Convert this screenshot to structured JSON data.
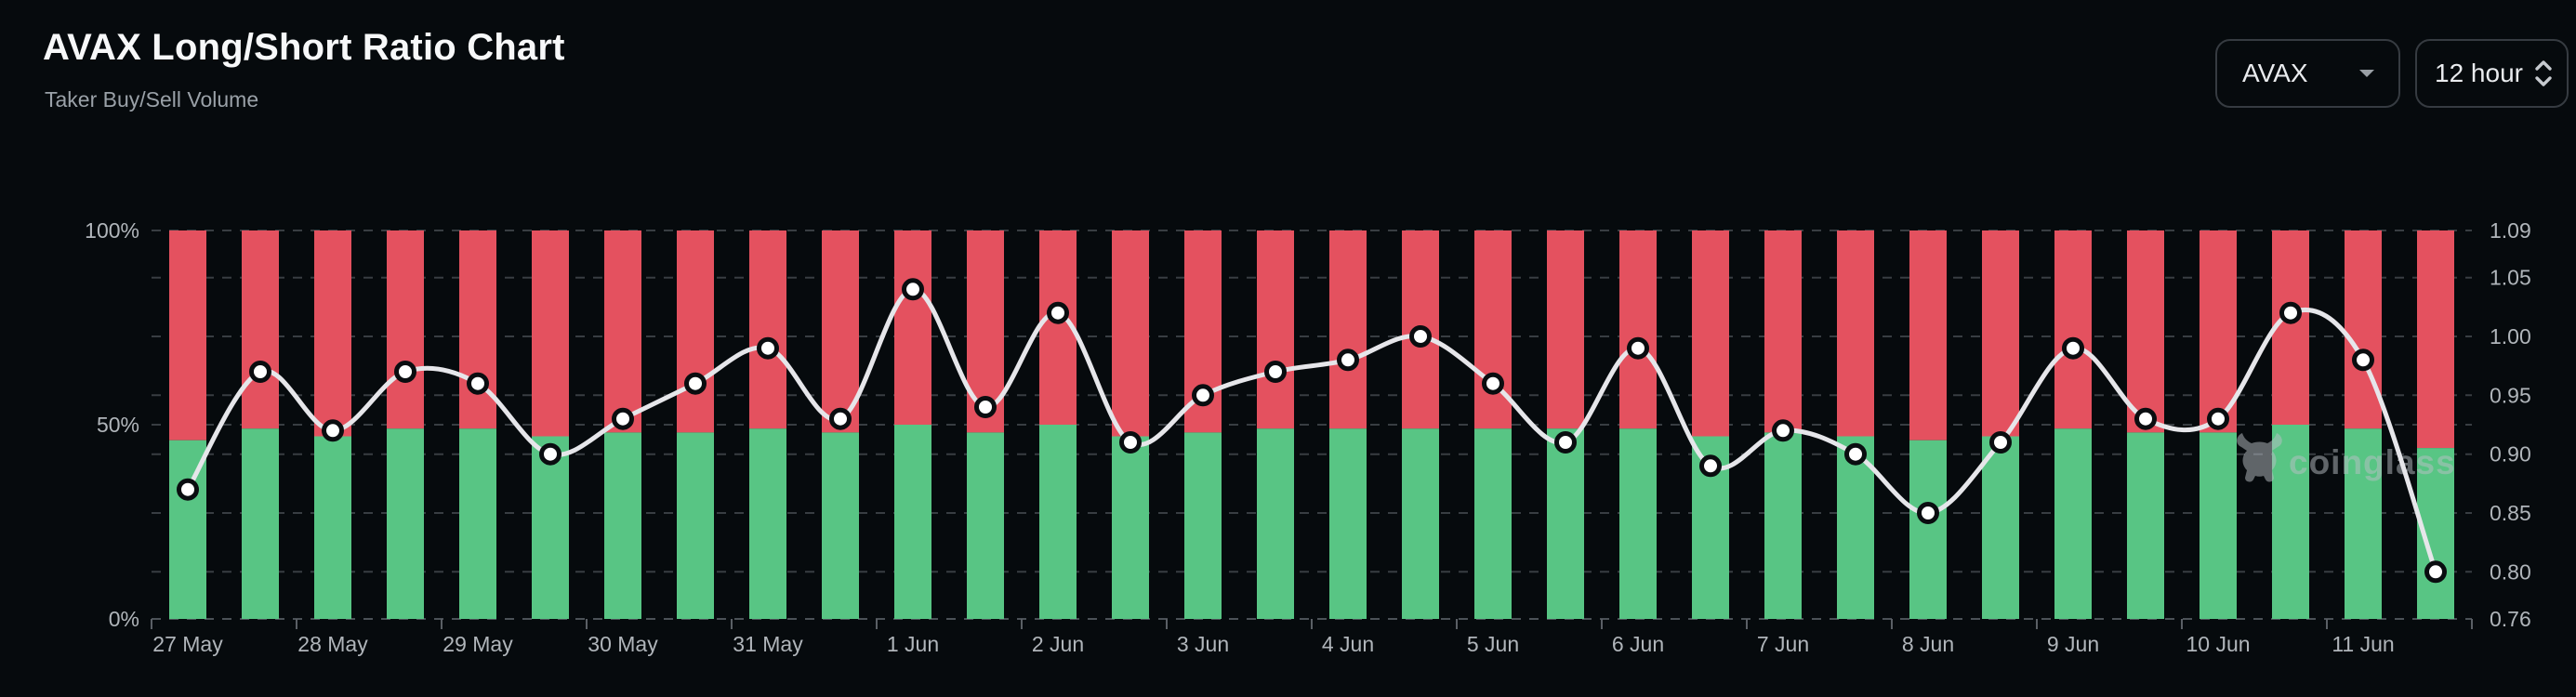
{
  "header": {
    "title": "AVAX Long/Short Ratio Chart",
    "subtitle": "Taker Buy/Sell Volume"
  },
  "controls": {
    "symbol": "AVAX",
    "symbol_icon": "chevron-down-icon",
    "interval": "12 hour",
    "interval_icon": "chevron-up-down-icon"
  },
  "watermark": {
    "brand": "coinglass",
    "icon": "coinglass-bull-icon"
  },
  "colors": {
    "background": "#060a0d",
    "long_green": "#58c584",
    "short_red": "#e4515f",
    "ratio_line": "#e6e6ea",
    "marker_fill": "#ffffff",
    "marker_stroke": "#0a0d10",
    "grid": "#383d42",
    "baseline": "#4b5157",
    "tick": "#5a5f65",
    "axis_text": "#b0b5ba",
    "watermark_gray": "rgba(185,192,198,0.5)"
  },
  "chart_data": {
    "type": "bar",
    "subtype": "stacked-percent-bars-with-smooth-line-overlay",
    "title": "AVAX Long/Short Ratio Chart",
    "subtitle": "Taker Buy/Sell Volume",
    "interval": "12 hour",
    "legend_position": "none",
    "grid": "horizontal-dashed",
    "categories": [
      "27 May",
      "28 May",
      "29 May",
      "30 May",
      "31 May",
      "1 Jun",
      "2 Jun",
      "3 Jun",
      "4 Jun",
      "5 Jun",
      "6 Jun",
      "7 Jun",
      "8 Jun",
      "9 Jun",
      "10 Jun",
      "11 Jun"
    ],
    "bars_per_category": 2,
    "left_axis": {
      "tick_labels": [
        "100%",
        "50%",
        "0%"
      ],
      "tick_values": [
        100,
        50,
        0
      ],
      "range": [
        0,
        100
      ]
    },
    "right_axis": {
      "tick_labels": [
        "1.09",
        "1.05",
        "1.00",
        "0.95",
        "0.90",
        "0.85",
        "0.80",
        "0.76"
      ],
      "tick_values": [
        1.09,
        1.05,
        1.0,
        0.95,
        0.9,
        0.85,
        0.8,
        0.76
      ],
      "range": [
        0.76,
        1.09
      ]
    },
    "series": [
      {
        "name": "Taker Buy Volume %",
        "type": "bar",
        "stack": true,
        "color": "#58c584",
        "values": [
          46,
          49,
          47,
          49,
          49,
          47,
          48,
          48,
          49,
          48,
          50,
          48,
          50,
          47,
          48,
          49,
          49,
          49,
          49,
          49,
          49,
          47,
          48,
          47,
          46,
          47,
          49,
          48,
          48,
          50,
          49,
          44
        ]
      },
      {
        "name": "Taker Sell Volume %",
        "type": "bar",
        "stack": true,
        "color": "#e4515f",
        "values": [
          54,
          51,
          53,
          51,
          51,
          53,
          52,
          52,
          51,
          52,
          50,
          52,
          50,
          53,
          52,
          51,
          51,
          51,
          51,
          51,
          51,
          53,
          52,
          53,
          54,
          53,
          51,
          52,
          52,
          50,
          51,
          56
        ]
      },
      {
        "name": "Long/Short Ratio",
        "type": "line",
        "axis": "right",
        "color": "#e6e6ea",
        "values": [
          0.87,
          0.97,
          0.92,
          0.97,
          0.96,
          0.9,
          0.93,
          0.96,
          0.99,
          0.93,
          1.04,
          0.94,
          1.02,
          0.91,
          0.95,
          0.97,
          0.98,
          1.0,
          0.96,
          0.91,
          0.99,
          0.89,
          0.92,
          0.9,
          0.85,
          0.91,
          0.99,
          0.93,
          0.93,
          1.02,
          0.98,
          0.8
        ]
      }
    ]
  }
}
